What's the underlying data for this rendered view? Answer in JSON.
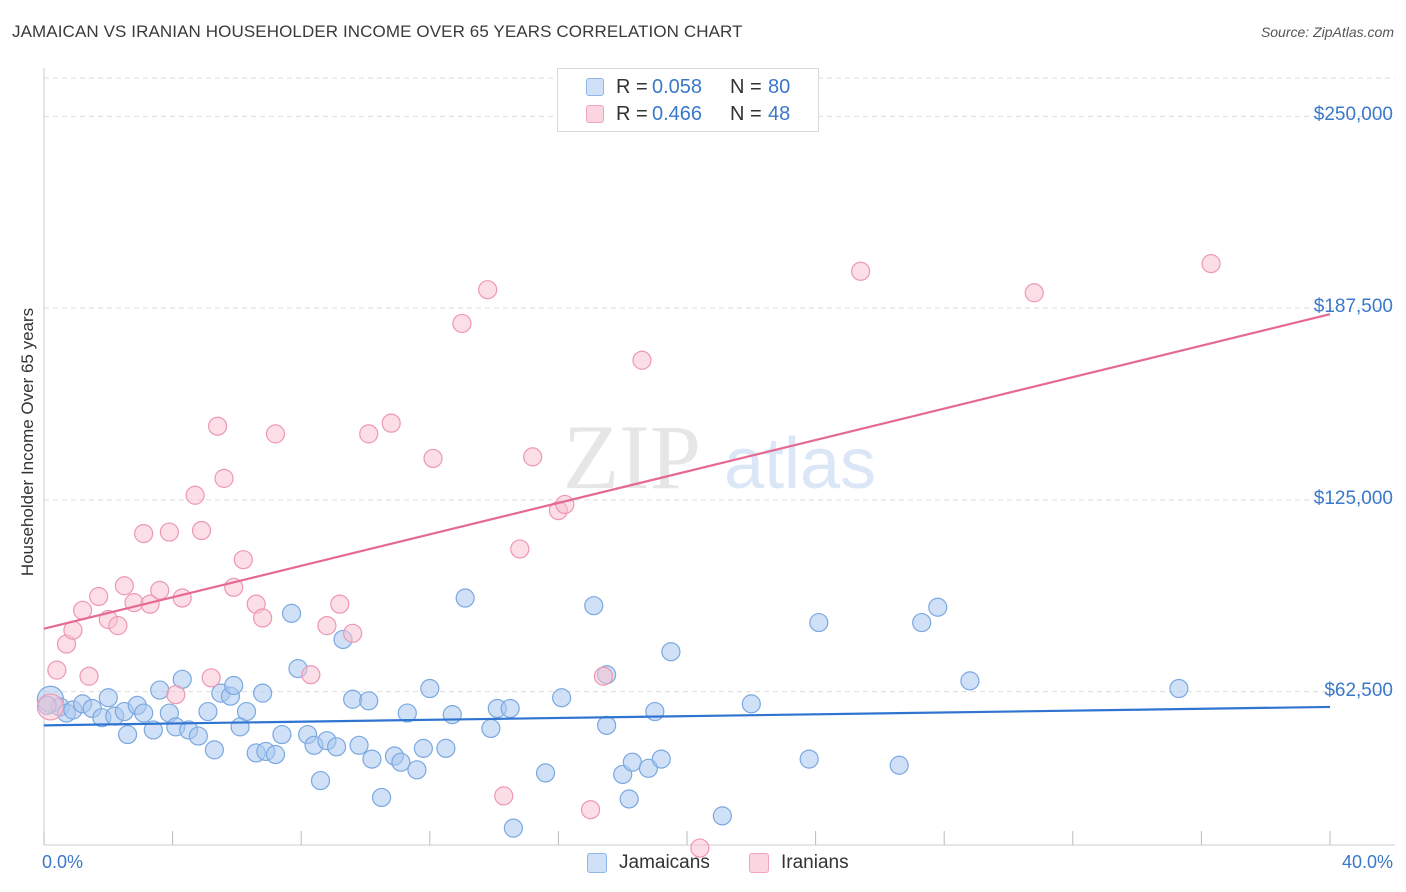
{
  "header": {
    "title": "JAMAICAN VS IRANIAN HOUSEHOLDER INCOME OVER 65 YEARS CORRELATION CHART",
    "source": "Source: ZipAtlas.com"
  },
  "watermark": {
    "zip": "ZIP",
    "atlas": "atlas"
  },
  "legend_top": [
    {
      "r_label": "R =",
      "r_value": "0.058",
      "n_label": "N =",
      "n_value": "80",
      "color": "#9fc3ee"
    },
    {
      "r_label": "R =",
      "r_value": "0.466",
      "n_label": "N =",
      "n_value": "48",
      "color": "#f6b3c8"
    }
  ],
  "legend_bottom": [
    {
      "label": "Jamaicans",
      "color": "#9fc3ee"
    },
    {
      "label": "Iranians",
      "color": "#f6b3c8"
    }
  ],
  "colors": {
    "blue_fill": "#aac8f0",
    "blue_stroke": "#7aa8e0",
    "blue_line": "#2f74d0",
    "pink_fill": "#f8c2d2",
    "pink_stroke": "#ee97b3",
    "pink_line": "#e56a93",
    "tick_text": "#3a78c9",
    "grid": "#dddddd"
  },
  "chart_data": {
    "type": "scatter",
    "title": "JAMAICAN VS IRANIAN HOUSEHOLDER INCOME OVER 65 YEARS CORRELATION CHART",
    "xlabel": "",
    "ylabel": "Householder Income Over 65 years",
    "xlim": [
      0,
      40
    ],
    "ylim": [
      12500,
      262500
    ],
    "x_tick_labels": [
      "0.0%",
      "40.0%"
    ],
    "y_ticks": [
      62500,
      125000,
      187500,
      250000
    ],
    "y_tick_labels": [
      "$62,500",
      "$125,000",
      "$187,500",
      "$250,000"
    ],
    "grid": true,
    "legend_position": "top-center",
    "series": [
      {
        "name": "Jamaicans",
        "color": "#9fc3ee",
        "trend": {
          "x": [
            0,
            40
          ],
          "y": [
            51500,
            57500
          ]
        },
        "points": [
          [
            0.2,
            60000
          ],
          [
            0.5,
            57500
          ],
          [
            0.7,
            55500
          ],
          [
            0.9,
            56500
          ],
          [
            1.2,
            58500
          ],
          [
            1.5,
            57000
          ],
          [
            1.8,
            54000
          ],
          [
            2.0,
            60500
          ],
          [
            2.2,
            54500
          ],
          [
            2.5,
            56000
          ],
          [
            2.6,
            48500
          ],
          [
            2.9,
            58000
          ],
          [
            3.1,
            55500
          ],
          [
            3.4,
            50000
          ],
          [
            3.6,
            63000
          ],
          [
            3.9,
            55500
          ],
          [
            4.1,
            51000
          ],
          [
            4.3,
            66500
          ],
          [
            4.5,
            50000
          ],
          [
            4.8,
            48000
          ],
          [
            5.1,
            56000
          ],
          [
            5.3,
            43500
          ],
          [
            5.5,
            62000
          ],
          [
            5.8,
            61000
          ],
          [
            5.9,
            64500
          ],
          [
            6.1,
            51000
          ],
          [
            6.3,
            56000
          ],
          [
            6.6,
            42500
          ],
          [
            6.8,
            62000
          ],
          [
            6.9,
            43000
          ],
          [
            7.2,
            42000
          ],
          [
            7.4,
            48500
          ],
          [
            7.7,
            88000
          ],
          [
            7.9,
            70000
          ],
          [
            8.2,
            48500
          ],
          [
            8.4,
            45000
          ],
          [
            8.6,
            33500
          ],
          [
            8.8,
            46500
          ],
          [
            9.1,
            44500
          ],
          [
            9.3,
            79500
          ],
          [
            9.6,
            60000
          ],
          [
            9.8,
            45000
          ],
          [
            10.1,
            59500
          ],
          [
            10.2,
            40500
          ],
          [
            10.5,
            28000
          ],
          [
            10.9,
            41500
          ],
          [
            11.1,
            39500
          ],
          [
            11.3,
            55500
          ],
          [
            11.6,
            37000
          ],
          [
            11.8,
            44000
          ],
          [
            12.0,
            63500
          ],
          [
            12.5,
            44000
          ],
          [
            12.7,
            55000
          ],
          [
            13.1,
            93000
          ],
          [
            13.9,
            50500
          ],
          [
            14.1,
            57000
          ],
          [
            14.5,
            57000
          ],
          [
            14.6,
            18000
          ],
          [
            15.6,
            36000
          ],
          [
            16.1,
            60500
          ],
          [
            17.1,
            90500
          ],
          [
            17.5,
            68000
          ],
          [
            17.5,
            51500
          ],
          [
            18.0,
            35500
          ],
          [
            18.2,
            27500
          ],
          [
            18.3,
            39500
          ],
          [
            18.8,
            37500
          ],
          [
            19.0,
            56000
          ],
          [
            19.2,
            40500
          ],
          [
            19.5,
            75500
          ],
          [
            21.1,
            22000
          ],
          [
            22.0,
            58500
          ],
          [
            23.8,
            40500
          ],
          [
            24.1,
            85000
          ],
          [
            26.6,
            38500
          ],
          [
            27.3,
            85000
          ],
          [
            27.8,
            90000
          ],
          [
            28.8,
            66000
          ],
          [
            35.3,
            63500
          ],
          [
            0.1,
            58000
          ]
        ]
      },
      {
        "name": "Iranians",
        "color": "#f6b3c8",
        "trend": {
          "x": [
            0,
            40
          ],
          "y": [
            83000,
            185500
          ]
        },
        "points": [
          [
            0.2,
            57500
          ],
          [
            0.4,
            69500
          ],
          [
            0.7,
            78000
          ],
          [
            0.9,
            82500
          ],
          [
            1.2,
            89000
          ],
          [
            1.4,
            67500
          ],
          [
            1.7,
            93500
          ],
          [
            2.0,
            86000
          ],
          [
            2.3,
            84000
          ],
          [
            2.5,
            97000
          ],
          [
            2.8,
            91500
          ],
          [
            3.1,
            114000
          ],
          [
            3.3,
            91000
          ],
          [
            3.6,
            95500
          ],
          [
            3.9,
            114500
          ],
          [
            4.1,
            61500
          ],
          [
            4.3,
            93000
          ],
          [
            4.7,
            126500
          ],
          [
            4.9,
            115000
          ],
          [
            5.2,
            67000
          ],
          [
            5.4,
            149000
          ],
          [
            5.6,
            132000
          ],
          [
            5.9,
            96500
          ],
          [
            6.2,
            105500
          ],
          [
            6.6,
            91000
          ],
          [
            6.8,
            86500
          ],
          [
            7.2,
            146500
          ],
          [
            8.3,
            68000
          ],
          [
            8.8,
            84000
          ],
          [
            9.2,
            91000
          ],
          [
            9.6,
            81500
          ],
          [
            10.1,
            146500
          ],
          [
            10.8,
            150000
          ],
          [
            12.1,
            138500
          ],
          [
            13.0,
            182500
          ],
          [
            13.8,
            193500
          ],
          [
            14.3,
            28500
          ],
          [
            14.8,
            109000
          ],
          [
            15.2,
            139000
          ],
          [
            16.0,
            121500
          ],
          [
            16.2,
            123500
          ],
          [
            17.0,
            24000
          ],
          [
            17.4,
            67500
          ],
          [
            18.6,
            170500
          ],
          [
            20.4,
            11500
          ],
          [
            25.4,
            199500
          ],
          [
            30.8,
            192500
          ],
          [
            36.3,
            202000
          ]
        ]
      }
    ]
  }
}
